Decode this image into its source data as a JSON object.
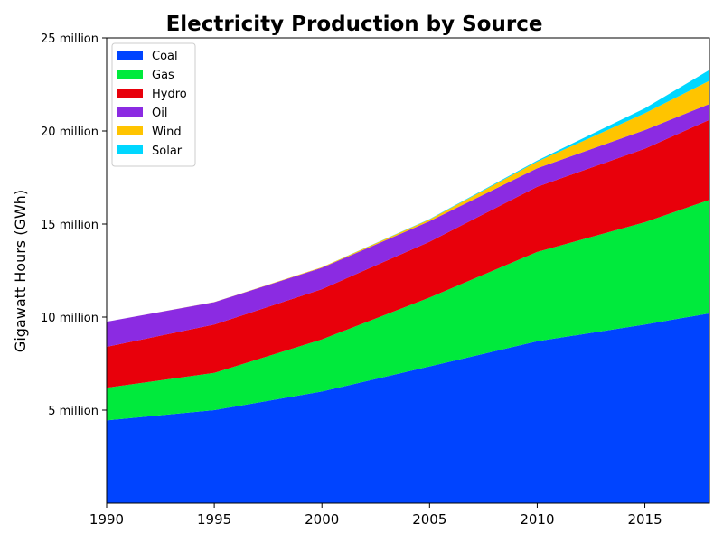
{
  "chart_data": {
    "type": "area",
    "stacked": true,
    "title": "Electricity Production by Source",
    "xlabel": "",
    "ylabel": "Gigawatt Hours (GWh)",
    "x": [
      1990,
      1995,
      2000,
      2005,
      2010,
      2015,
      2018
    ],
    "xlim": [
      1990,
      2018
    ],
    "ylim": [
      0,
      25000000
    ],
    "xticks": [
      1990,
      1995,
      2000,
      2005,
      2010,
      2015
    ],
    "yticks": [
      {
        "value": 5000000,
        "label": "5 million"
      },
      {
        "value": 10000000,
        "label": "10 million"
      },
      {
        "value": 15000000,
        "label": "15 million"
      },
      {
        "value": 20000000,
        "label": "20 million"
      },
      {
        "value": 25000000,
        "label": "25 million"
      }
    ],
    "grid": false,
    "legend": "top-left",
    "series": [
      {
        "name": "Coal",
        "color": "#0044ff",
        "values": [
          4450000,
          5000000,
          6000000,
          7350000,
          8700000,
          9600000,
          10200000
        ]
      },
      {
        "name": "Gas",
        "color": "#00ea3c",
        "values": [
          1750000,
          2000000,
          2800000,
          3700000,
          4800000,
          5500000,
          6100000
        ]
      },
      {
        "name": "Hydro",
        "color": "#e8000b",
        "values": [
          2200000,
          2600000,
          2700000,
          3000000,
          3500000,
          3950000,
          4300000
        ]
      },
      {
        "name": "Oil",
        "color": "#8b2be2",
        "values": [
          1350000,
          1200000,
          1150000,
          1100000,
          1000000,
          1000000,
          850000
        ]
      },
      {
        "name": "Wind",
        "color": "#ffc400",
        "values": [
          0,
          5000,
          30000,
          100000,
          350000,
          900000,
          1250000
        ]
      },
      {
        "name": "Solar",
        "color": "#00d7ff",
        "values": [
          0,
          0,
          0,
          20000,
          60000,
          270000,
          580000
        ]
      }
    ]
  }
}
